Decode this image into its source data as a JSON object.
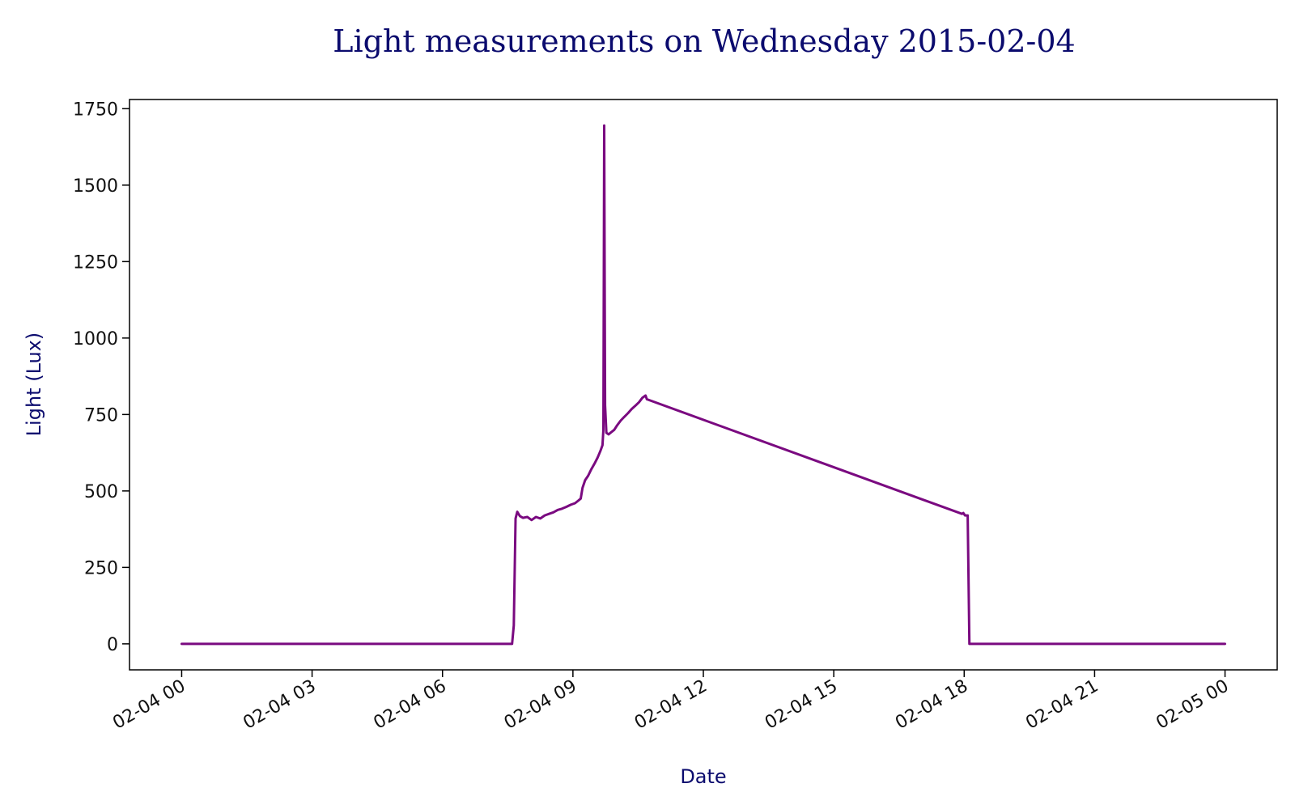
{
  "chart_data": {
    "type": "line",
    "title": "Light measurements on Wednesday 2015-02-04",
    "xlabel": "Date",
    "ylabel": "Light (Lux)",
    "x_range_hours": [
      -1.2,
      25.2
    ],
    "ylim": [
      -85,
      1780
    ],
    "x_ticks": [
      {
        "hour": 0,
        "label": "02-04 00"
      },
      {
        "hour": 3,
        "label": "02-04 03"
      },
      {
        "hour": 6,
        "label": "02-04 06"
      },
      {
        "hour": 9,
        "label": "02-04 09"
      },
      {
        "hour": 12,
        "label": "02-04 12"
      },
      {
        "hour": 15,
        "label": "02-04 15"
      },
      {
        "hour": 18,
        "label": "02-04 18"
      },
      {
        "hour": 21,
        "label": "02-04 21"
      },
      {
        "hour": 24,
        "label": "02-05 00"
      }
    ],
    "y_ticks": [
      {
        "value": 0,
        "label": "0"
      },
      {
        "value": 250,
        "label": "250"
      },
      {
        "value": 500,
        "label": "500"
      },
      {
        "value": 750,
        "label": "750"
      },
      {
        "value": 1000,
        "label": "1000"
      },
      {
        "value": 1250,
        "label": "1250"
      },
      {
        "value": 1500,
        "label": "1500"
      },
      {
        "value": 1750,
        "label": "1750"
      }
    ],
    "grid": false,
    "series": [
      {
        "color": "#7a0a80",
        "points": [
          [
            0,
            0
          ],
          [
            7.6,
            0
          ],
          [
            7.64,
            60
          ],
          [
            7.68,
            410
          ],
          [
            7.72,
            432
          ],
          [
            7.78,
            418
          ],
          [
            7.85,
            412
          ],
          [
            7.95,
            415
          ],
          [
            8.05,
            405
          ],
          [
            8.15,
            415
          ],
          [
            8.25,
            410
          ],
          [
            8.35,
            420
          ],
          [
            8.45,
            425
          ],
          [
            8.55,
            430
          ],
          [
            8.65,
            438
          ],
          [
            8.75,
            442
          ],
          [
            8.85,
            448
          ],
          [
            8.95,
            455
          ],
          [
            9.05,
            460
          ],
          [
            9.12,
            468
          ],
          [
            9.18,
            475
          ],
          [
            9.22,
            510
          ],
          [
            9.28,
            535
          ],
          [
            9.35,
            550
          ],
          [
            9.42,
            570
          ],
          [
            9.5,
            590
          ],
          [
            9.57,
            610
          ],
          [
            9.63,
            630
          ],
          [
            9.68,
            650
          ],
          [
            9.7,
            700
          ],
          [
            9.72,
            1695
          ],
          [
            9.74,
            780
          ],
          [
            9.77,
            690
          ],
          [
            9.82,
            685
          ],
          [
            9.88,
            692
          ],
          [
            9.95,
            700
          ],
          [
            10.02,
            715
          ],
          [
            10.1,
            730
          ],
          [
            10.18,
            742
          ],
          [
            10.27,
            755
          ],
          [
            10.35,
            768
          ],
          [
            10.43,
            778
          ],
          [
            10.52,
            790
          ],
          [
            10.6,
            805
          ],
          [
            10.67,
            812
          ],
          [
            10.7,
            800
          ],
          [
            17.95,
            425
          ],
          [
            17.98,
            428
          ],
          [
            18.02,
            420
          ],
          [
            18.08,
            420
          ],
          [
            18.12,
            0
          ],
          [
            24,
            0
          ]
        ]
      }
    ]
  }
}
